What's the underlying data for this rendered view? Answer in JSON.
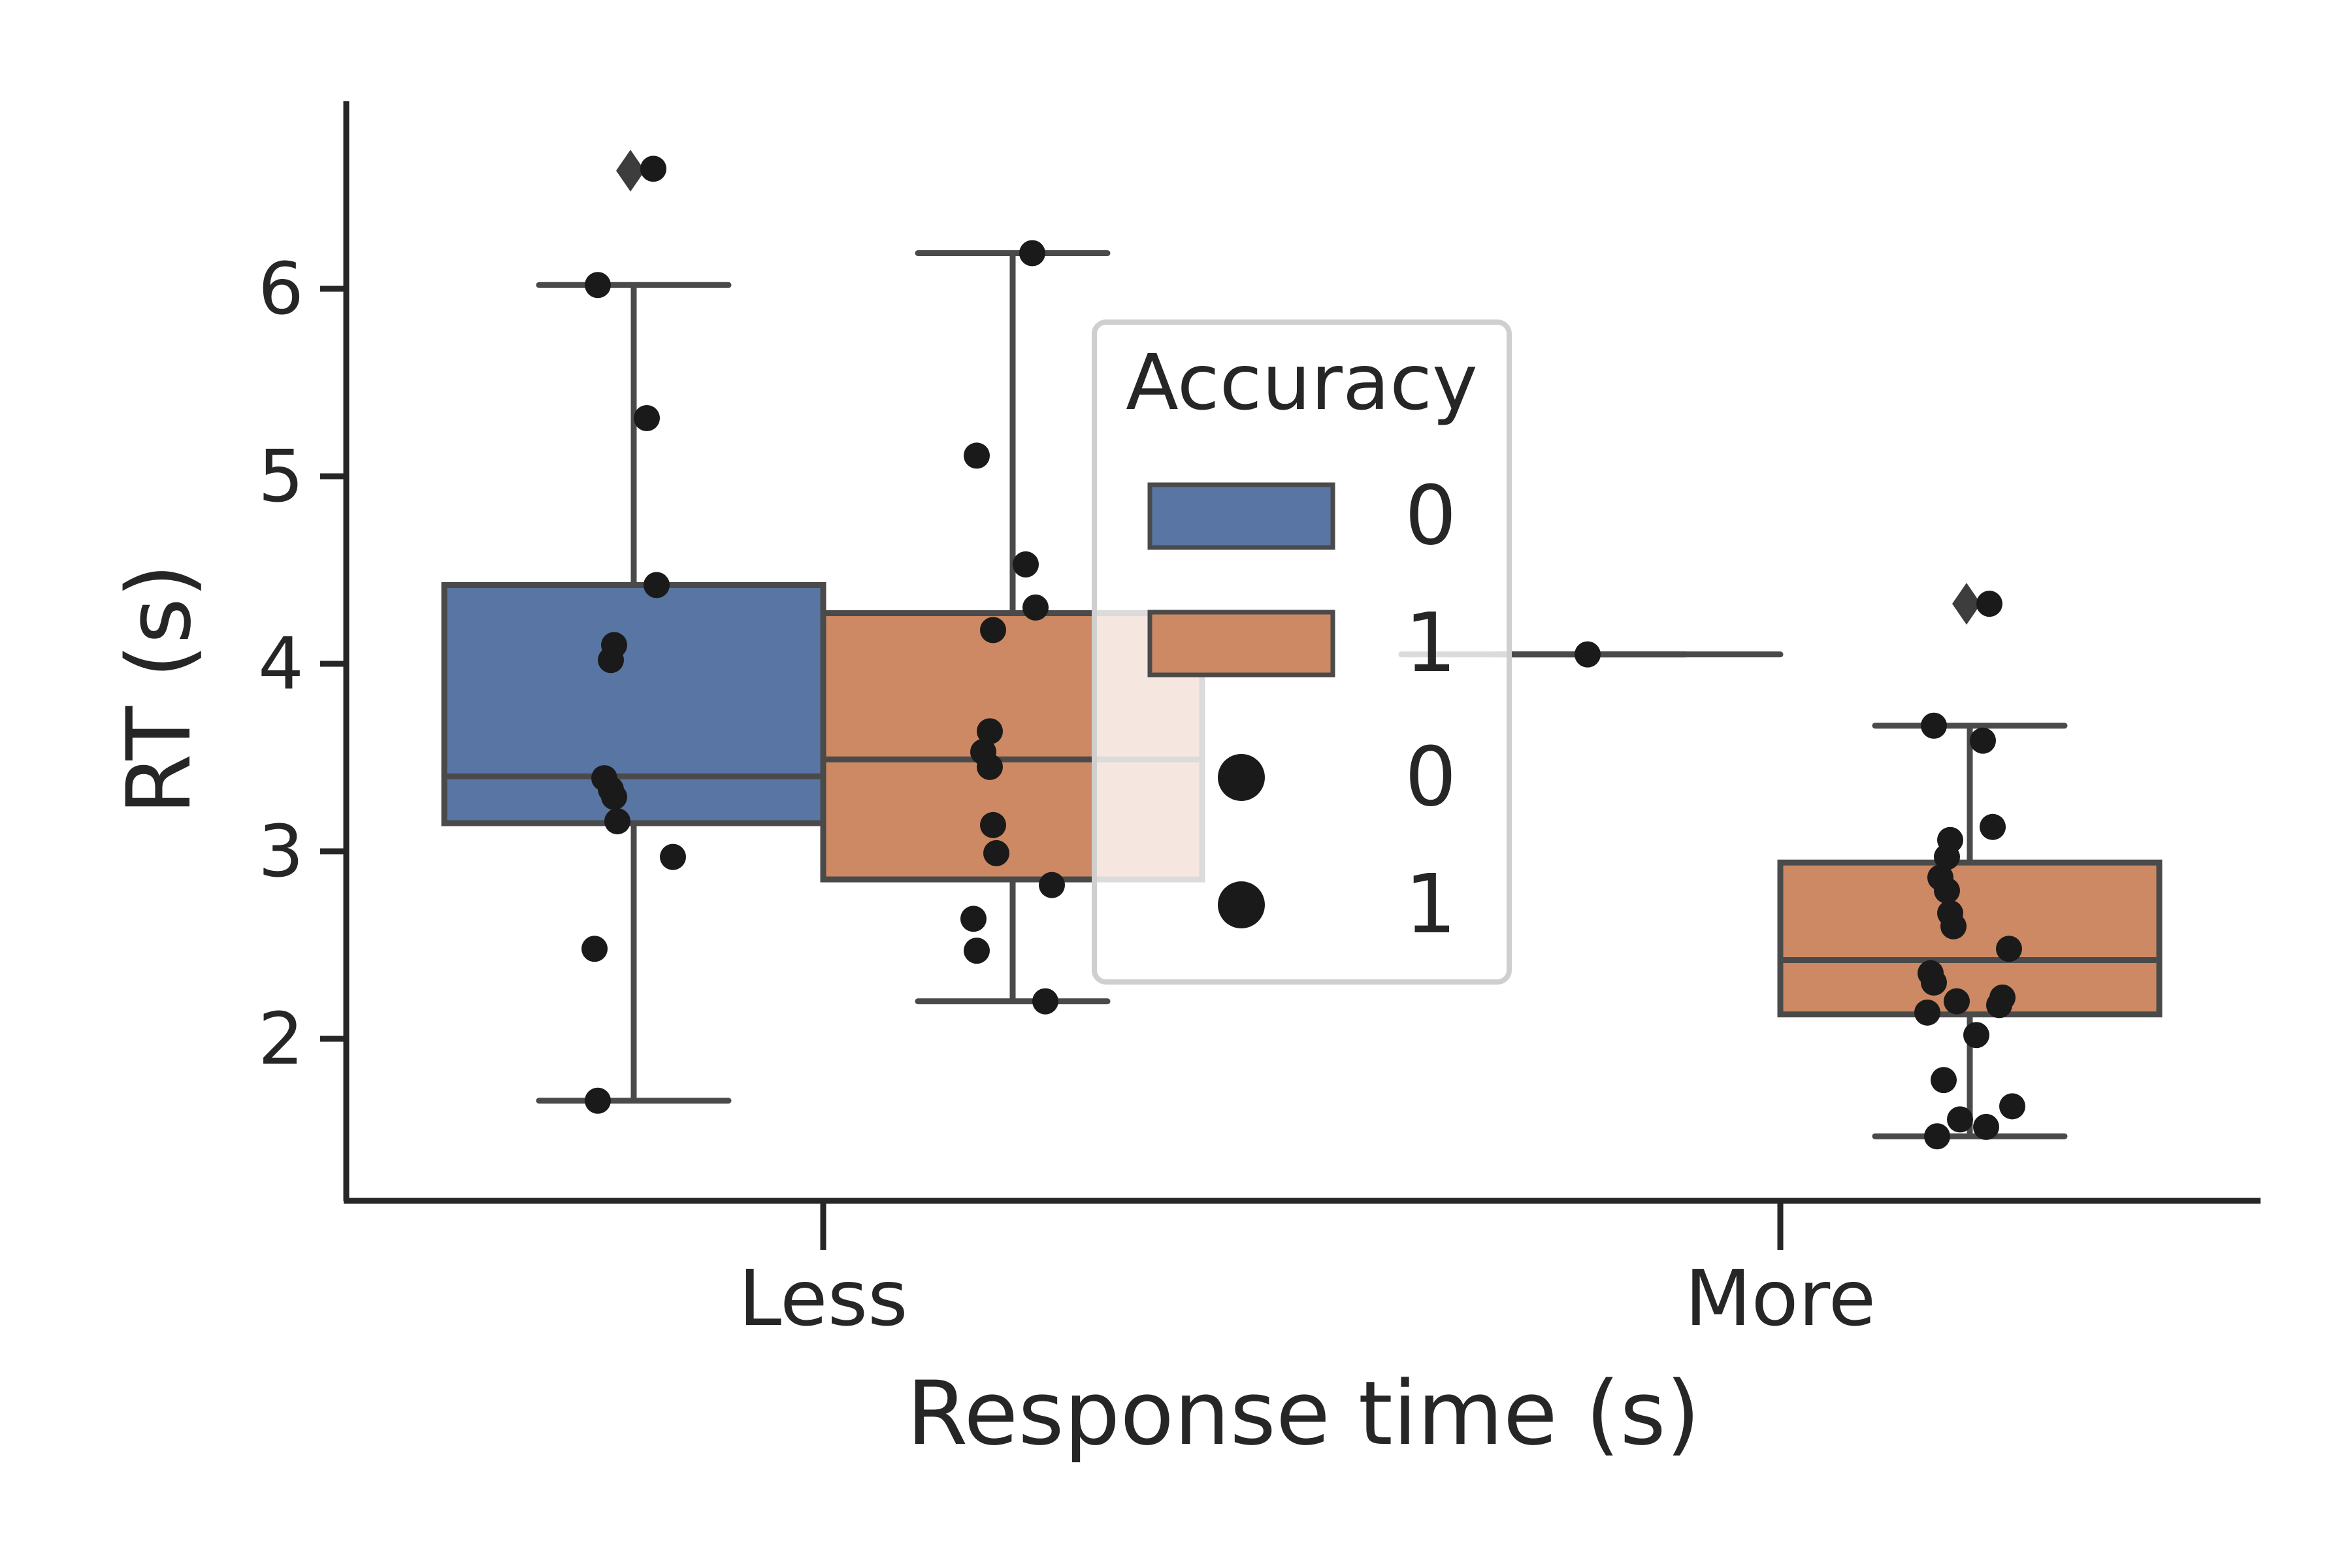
{
  "chart_data": {
    "type": "box",
    "title": "",
    "xlabel": "Response time (s)",
    "ylabel": "RT (s)",
    "ylim": [
      1.15,
      6.95
    ],
    "yticks": [
      2,
      3,
      4,
      5,
      6
    ],
    "categories": [
      "Less",
      "More"
    ],
    "hue_title": "Accuracy",
    "colors": {
      "0": "#5975a4",
      "1": "#cc8963",
      "box_edge": "#4a4a4a",
      "points": "#1a1a1a",
      "axis": "#262626"
    },
    "legend": {
      "title": "Accuracy",
      "position": "center",
      "entries": [
        {
          "kind": "patch",
          "label": "0",
          "color": "#5975a4"
        },
        {
          "kind": "patch",
          "label": "1",
          "color": "#cc8963"
        },
        {
          "kind": "marker",
          "label": "0"
        },
        {
          "kind": "marker",
          "label": "1"
        }
      ]
    },
    "boxes": [
      {
        "category": "Less",
        "hue": "0",
        "q1": 3.15,
        "median": 3.4,
        "q3": 4.42,
        "whisker_low": 1.67,
        "whisker_high": 6.02,
        "fliers": [
          6.63
        ]
      },
      {
        "category": "Less",
        "hue": "1",
        "q1": 2.85,
        "median": 3.49,
        "q3": 4.27,
        "whisker_low": 2.2,
        "whisker_high": 6.19,
        "fliers": []
      },
      {
        "category": "More",
        "hue": "0",
        "q1": 4.05,
        "median": 4.05,
        "q3": 4.05,
        "whisker_low": 4.05,
        "whisker_high": 4.05,
        "fliers": []
      },
      {
        "category": "More",
        "hue": "1",
        "q1": 2.13,
        "median": 2.42,
        "q3": 2.94,
        "whisker_low": 1.48,
        "whisker_high": 3.67,
        "fliers": [
          4.32
        ]
      }
    ],
    "strip_points": [
      {
        "category": "Less",
        "hue": "0",
        "values": [
          6.64,
          6.02,
          5.31,
          4.42,
          4.1,
          4.02,
          3.39,
          3.33,
          3.29,
          3.16,
          2.97,
          2.48,
          1.67
        ]
      },
      {
        "category": "Less",
        "hue": "1",
        "values": [
          6.19,
          5.11,
          4.53,
          4.3,
          4.18,
          3.64,
          3.53,
          3.45,
          3.14,
          2.99,
          2.82,
          2.64,
          2.47,
          2.2
        ]
      },
      {
        "category": "More",
        "hue": "0",
        "values": [
          4.05
        ]
      },
      {
        "category": "More",
        "hue": "1",
        "values": [
          4.32,
          3.67,
          3.59,
          3.13,
          3.06,
          2.97,
          2.86,
          2.79,
          2.67,
          2.6,
          2.48,
          2.35,
          2.3,
          2.22,
          2.2,
          2.18,
          2.14,
          2.02,
          1.78,
          1.64,
          1.57,
          1.53,
          1.48
        ]
      }
    ]
  }
}
